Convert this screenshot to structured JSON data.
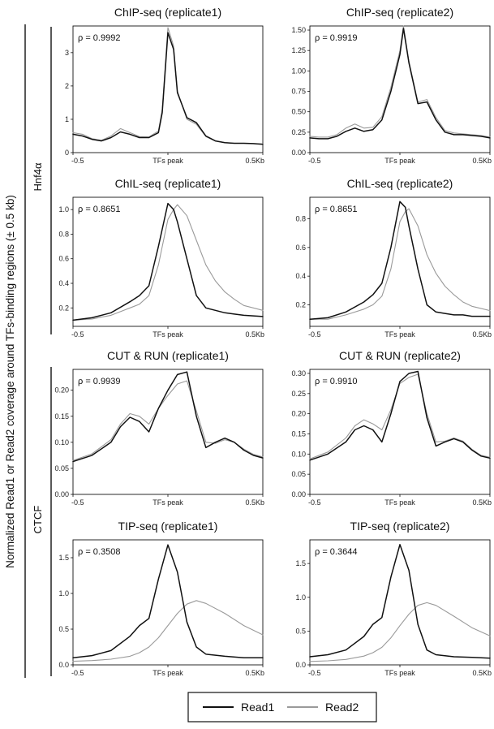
{
  "figure": {
    "y_axis_label": "Normalized Read1 or Read2 coverage around TFs-binding regions (± 0.5 kb)",
    "groups": [
      {
        "label": "Hnf4α"
      },
      {
        "label": "CTCF"
      }
    ],
    "legend": [
      {
        "label": "Read1",
        "color": "#111111"
      },
      {
        "label": "Read2",
        "color": "#9a9a9a"
      }
    ],
    "colors": {
      "read1": "#111111",
      "read2": "#9a9a9a"
    }
  },
  "chart_data": [
    {
      "type": "line",
      "title": "ChIP-seq (replicate1)",
      "group": "Hnf4α",
      "rho_label": "ρ = 0.9992",
      "xlabels": [
        "-0.5",
        "TFs peak",
        "0.5Kb"
      ],
      "xlim": [
        -0.5,
        0.5
      ],
      "ylim": [
        0,
        3.8
      ],
      "yticks": [
        0,
        1,
        2,
        3
      ],
      "yticklabels": [
        "0",
        "1",
        "2",
        "3"
      ],
      "x": [
        -0.5,
        -0.45,
        -0.4,
        -0.35,
        -0.3,
        -0.25,
        -0.2,
        -0.15,
        -0.1,
        -0.05,
        -0.03,
        0,
        0.03,
        0.05,
        0.1,
        0.15,
        0.2,
        0.25,
        0.3,
        0.35,
        0.4,
        0.45,
        0.5
      ],
      "series": [
        {
          "name": "Read1",
          "values": [
            0.55,
            0.5,
            0.4,
            0.35,
            0.45,
            0.62,
            0.55,
            0.45,
            0.45,
            0.6,
            1.2,
            3.6,
            3.1,
            1.8,
            1.05,
            0.9,
            0.5,
            0.35,
            0.3,
            0.28,
            0.28,
            0.27,
            0.25
          ]
        },
        {
          "name": "Read2",
          "values": [
            0.6,
            0.55,
            0.42,
            0.37,
            0.5,
            0.72,
            0.6,
            0.48,
            0.47,
            0.65,
            1.3,
            3.75,
            3.2,
            1.85,
            1.0,
            0.85,
            0.48,
            0.35,
            0.3,
            0.28,
            0.28,
            0.27,
            0.26
          ]
        }
      ]
    },
    {
      "type": "line",
      "title": "ChIP-seq (replicate2)",
      "group": "Hnf4α",
      "rho_label": "ρ = 0.9919",
      "xlabels": [
        "-0.5",
        "TFs peak",
        "0.5Kb"
      ],
      "xlim": [
        -0.5,
        0.5
      ],
      "ylim": [
        0,
        1.55
      ],
      "yticks": [
        0,
        0.25,
        0.5,
        0.75,
        1.0,
        1.25,
        1.5
      ],
      "yticklabels": [
        "0.00",
        "0.25",
        "0.50",
        "0.75",
        "1.00",
        "1.25",
        "1.50"
      ],
      "x": [
        -0.5,
        -0.45,
        -0.4,
        -0.35,
        -0.3,
        -0.25,
        -0.2,
        -0.15,
        -0.1,
        -0.05,
        0,
        0.02,
        0.05,
        0.1,
        0.15,
        0.2,
        0.25,
        0.3,
        0.35,
        0.4,
        0.45,
        0.5
      ],
      "series": [
        {
          "name": "Read1",
          "values": [
            0.18,
            0.17,
            0.17,
            0.2,
            0.26,
            0.3,
            0.26,
            0.28,
            0.4,
            0.75,
            1.2,
            1.52,
            1.1,
            0.6,
            0.62,
            0.4,
            0.25,
            0.22,
            0.22,
            0.21,
            0.2,
            0.18
          ]
        },
        {
          "name": "Read2",
          "values": [
            0.2,
            0.19,
            0.19,
            0.22,
            0.3,
            0.35,
            0.3,
            0.31,
            0.44,
            0.8,
            1.25,
            1.55,
            1.12,
            0.62,
            0.65,
            0.43,
            0.27,
            0.24,
            0.23,
            0.22,
            0.21,
            0.19
          ]
        }
      ]
    },
    {
      "type": "line",
      "title": "ChIL-seq (replicate1)",
      "group": "Hnf4α",
      "rho_label": "ρ = 0.8651",
      "xlabels": [
        "-0.5",
        "TFs peak",
        "0.5Kb"
      ],
      "xlim": [
        -0.5,
        0.5
      ],
      "ylim": [
        0.05,
        1.1
      ],
      "yticks": [
        0.2,
        0.4,
        0.6,
        0.8,
        1.0
      ],
      "yticklabels": [
        "0.2",
        "0.4",
        "0.6",
        "0.8",
        "1.0"
      ],
      "x": [
        -0.5,
        -0.4,
        -0.3,
        -0.2,
        -0.15,
        -0.1,
        -0.05,
        0,
        0.03,
        0.05,
        0.1,
        0.15,
        0.2,
        0.25,
        0.3,
        0.35,
        0.4,
        0.5
      ],
      "series": [
        {
          "name": "Read1",
          "values": [
            0.1,
            0.12,
            0.16,
            0.25,
            0.3,
            0.38,
            0.7,
            1.05,
            1.0,
            0.9,
            0.6,
            0.3,
            0.2,
            0.18,
            0.16,
            0.15,
            0.14,
            0.13
          ]
        },
        {
          "name": "Read2",
          "values": [
            0.1,
            0.11,
            0.14,
            0.2,
            0.23,
            0.3,
            0.55,
            0.92,
            1.0,
            1.04,
            0.95,
            0.75,
            0.55,
            0.42,
            0.33,
            0.27,
            0.22,
            0.18
          ]
        }
      ]
    },
    {
      "type": "line",
      "title": "ChIL-seq (replicate2)",
      "group": "Hnf4α",
      "rho_label": "ρ = 0.8651",
      "xlabels": [
        "-0.5",
        "TFs peak",
        "0.5Kb"
      ],
      "xlim": [
        -0.5,
        0.5
      ],
      "ylim": [
        0.05,
        0.95
      ],
      "yticks": [
        0.2,
        0.4,
        0.6,
        0.8
      ],
      "yticklabels": [
        "0.2",
        "0.4",
        "0.6",
        "0.8"
      ],
      "x": [
        -0.5,
        -0.4,
        -0.3,
        -0.2,
        -0.15,
        -0.1,
        -0.05,
        0,
        0.03,
        0.05,
        0.1,
        0.15,
        0.2,
        0.25,
        0.3,
        0.35,
        0.4,
        0.5
      ],
      "series": [
        {
          "name": "Read1",
          "values": [
            0.1,
            0.11,
            0.15,
            0.22,
            0.27,
            0.35,
            0.6,
            0.92,
            0.88,
            0.75,
            0.45,
            0.2,
            0.15,
            0.14,
            0.13,
            0.13,
            0.12,
            0.12
          ]
        },
        {
          "name": "Read2",
          "values": [
            0.1,
            0.1,
            0.13,
            0.17,
            0.2,
            0.26,
            0.45,
            0.78,
            0.85,
            0.87,
            0.75,
            0.55,
            0.42,
            0.33,
            0.27,
            0.22,
            0.19,
            0.16
          ]
        }
      ]
    },
    {
      "type": "line",
      "title": "CUT & RUN (replicate1)",
      "group": "CTCF",
      "rho_label": "ρ = 0.9939",
      "xlabels": [
        "-0.5",
        "TFs peak",
        "0.5Kb"
      ],
      "xlim": [
        -0.5,
        0.5
      ],
      "ylim": [
        0,
        0.24
      ],
      "yticks": [
        0,
        0.05,
        0.1,
        0.15,
        0.2
      ],
      "yticklabels": [
        "0.00",
        "0.05",
        "0.10",
        "0.15",
        "0.20"
      ],
      "x": [
        -0.5,
        -0.4,
        -0.3,
        -0.25,
        -0.2,
        -0.15,
        -0.1,
        -0.05,
        0,
        0.05,
        0.1,
        0.15,
        0.2,
        0.25,
        0.3,
        0.35,
        0.4,
        0.45,
        0.5
      ],
      "series": [
        {
          "name": "Read1",
          "values": [
            0.063,
            0.075,
            0.1,
            0.13,
            0.148,
            0.14,
            0.12,
            0.165,
            0.2,
            0.23,
            0.235,
            0.15,
            0.09,
            0.1,
            0.108,
            0.1,
            0.085,
            0.075,
            0.07
          ]
        },
        {
          "name": "Read2",
          "values": [
            0.065,
            0.078,
            0.105,
            0.135,
            0.155,
            0.15,
            0.135,
            0.165,
            0.19,
            0.212,
            0.218,
            0.16,
            0.1,
            0.098,
            0.105,
            0.1,
            0.087,
            0.077,
            0.072
          ]
        }
      ]
    },
    {
      "type": "line",
      "title": "CUT & RUN (replicate2)",
      "group": "CTCF",
      "rho_label": "ρ = 0.9910",
      "xlabels": [
        "-0.5",
        "TFs peak",
        "0.5Kb"
      ],
      "xlim": [
        -0.5,
        0.5
      ],
      "ylim": [
        0,
        0.31
      ],
      "yticks": [
        0,
        0.05,
        0.1,
        0.15,
        0.2,
        0.25,
        0.3
      ],
      "yticklabels": [
        "0.00",
        "0.05",
        "0.10",
        "0.15",
        "0.20",
        "0.25",
        "0.30"
      ],
      "x": [
        -0.5,
        -0.4,
        -0.3,
        -0.25,
        -0.2,
        -0.15,
        -0.1,
        -0.05,
        0,
        0.05,
        0.1,
        0.15,
        0.2,
        0.25,
        0.3,
        0.35,
        0.4,
        0.45,
        0.5
      ],
      "series": [
        {
          "name": "Read1",
          "values": [
            0.085,
            0.1,
            0.13,
            0.16,
            0.17,
            0.16,
            0.13,
            0.2,
            0.28,
            0.3,
            0.305,
            0.19,
            0.12,
            0.13,
            0.138,
            0.13,
            0.11,
            0.095,
            0.09
          ]
        },
        {
          "name": "Read2",
          "values": [
            0.088,
            0.105,
            0.14,
            0.17,
            0.185,
            0.175,
            0.16,
            0.21,
            0.275,
            0.29,
            0.298,
            0.2,
            0.13,
            0.132,
            0.14,
            0.132,
            0.112,
            0.097,
            0.092
          ]
        }
      ]
    },
    {
      "type": "line",
      "title": "TIP-seq (replicate1)",
      "group": "CTCF",
      "rho_label": "ρ = 0.3508",
      "xlabels": [
        "-0.5",
        "TFs peak",
        "0.5Kb"
      ],
      "xlim": [
        -0.5,
        0.5
      ],
      "ylim": [
        0,
        1.75
      ],
      "yticks": [
        0,
        0.5,
        1.0,
        1.5
      ],
      "yticklabels": [
        "0.0",
        "0.5",
        "1.0",
        "1.5"
      ],
      "x": [
        -0.5,
        -0.4,
        -0.3,
        -0.2,
        -0.15,
        -0.1,
        -0.05,
        0,
        0.05,
        0.1,
        0.15,
        0.2,
        0.3,
        0.4,
        0.5
      ],
      "series": [
        {
          "name": "Read1",
          "values": [
            0.1,
            0.13,
            0.2,
            0.4,
            0.55,
            0.65,
            1.2,
            1.68,
            1.3,
            0.6,
            0.25,
            0.15,
            0.12,
            0.1,
            0.1
          ]
        },
        {
          "name": "Read2",
          "values": [
            0.05,
            0.06,
            0.08,
            0.12,
            0.17,
            0.25,
            0.38,
            0.55,
            0.72,
            0.85,
            0.9,
            0.86,
            0.72,
            0.55,
            0.42
          ]
        }
      ]
    },
    {
      "type": "line",
      "title": "TIP-seq (replicate2)",
      "group": "CTCF",
      "rho_label": "ρ = 0.3644",
      "xlabels": [
        "-0.5",
        "TFs peak",
        "0.5Kb"
      ],
      "xlim": [
        -0.5,
        0.5
      ],
      "ylim": [
        0,
        1.85
      ],
      "yticks": [
        0,
        0.5,
        1.0,
        1.5
      ],
      "yticklabels": [
        "0.0",
        "0.5",
        "1.0",
        "1.5"
      ],
      "x": [
        -0.5,
        -0.4,
        -0.3,
        -0.2,
        -0.15,
        -0.1,
        -0.05,
        0,
        0.05,
        0.1,
        0.15,
        0.2,
        0.3,
        0.4,
        0.5
      ],
      "series": [
        {
          "name": "Read1",
          "values": [
            0.12,
            0.15,
            0.22,
            0.42,
            0.6,
            0.7,
            1.3,
            1.78,
            1.4,
            0.6,
            0.22,
            0.15,
            0.12,
            0.11,
            0.1
          ]
        },
        {
          "name": "Read2",
          "values": [
            0.05,
            0.06,
            0.08,
            0.13,
            0.18,
            0.26,
            0.4,
            0.58,
            0.75,
            0.88,
            0.92,
            0.88,
            0.72,
            0.55,
            0.43
          ]
        }
      ]
    }
  ]
}
